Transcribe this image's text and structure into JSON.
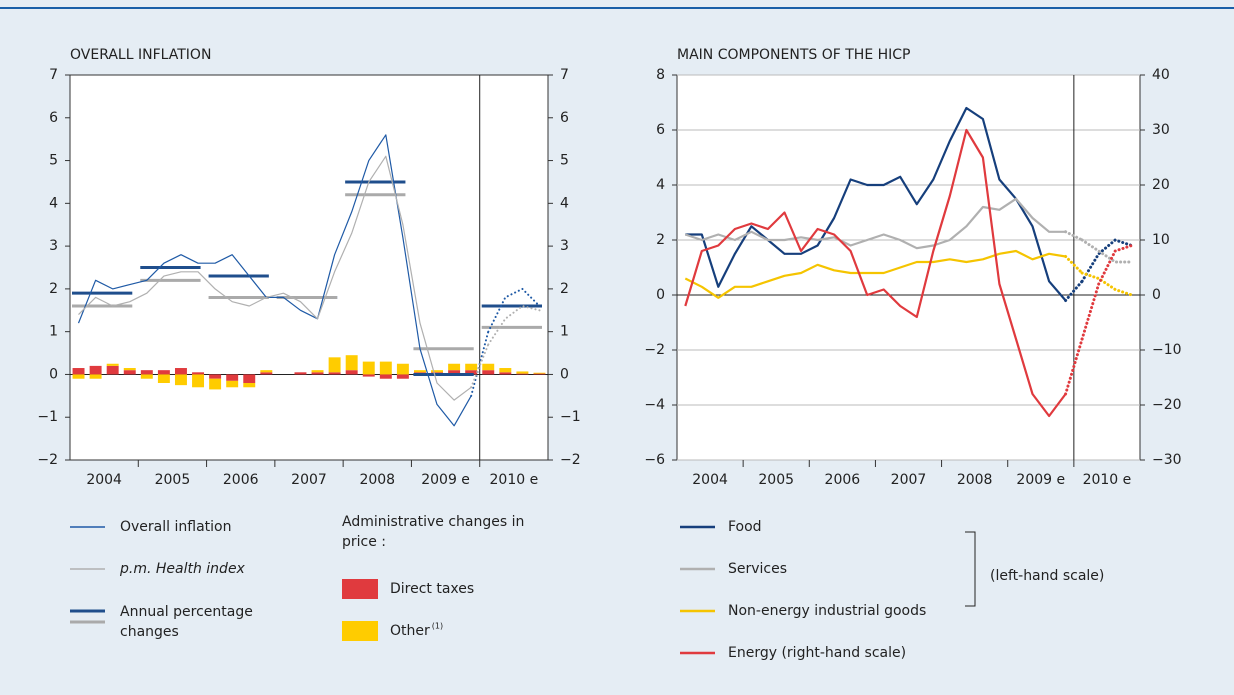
{
  "chart_data": [
    {
      "type": "line",
      "title": "OVERALL INFLATION",
      "x": [
        2004.125,
        2004.375,
        2004.625,
        2004.875,
        2005.125,
        2005.375,
        2005.625,
        2005.875,
        2006.125,
        2006.375,
        2006.625,
        2006.875,
        2007.125,
        2007.375,
        2007.625,
        2007.875,
        2008.125,
        2008.375,
        2008.625,
        2008.875,
        2009.125,
        2009.375,
        2009.625,
        2009.875,
        2010.125,
        2010.375,
        2010.625,
        2010.875
      ],
      "xlim": [
        2004,
        2011
      ],
      "xticks": [
        {
          "value": 2004.5,
          "label": "2004"
        },
        {
          "value": 2005.5,
          "label": "2005"
        },
        {
          "value": 2006.5,
          "label": "2006"
        },
        {
          "value": 2007.5,
          "label": "2007"
        },
        {
          "value": 2008.5,
          "label": "2008"
        },
        {
          "value": 2009.5,
          "label": "2009 e"
        },
        {
          "value": 2010.5,
          "label": "2010 e"
        }
      ],
      "ylim": [
        -2,
        7
      ],
      "yticks": [
        {
          "value": -2,
          "label": "−2"
        },
        {
          "value": -1,
          "label": "−1"
        },
        0,
        1,
        2,
        3,
        4,
        5,
        6,
        7
      ],
      "mirror_y_axis": true,
      "grid": false,
      "forecast_start": 2010,
      "series": [
        {
          "name": "Overall inflation",
          "color": "#1f5aa6",
          "values": [
            1.2,
            2.2,
            2.0,
            2.1,
            2.2,
            2.6,
            2.8,
            2.6,
            2.6,
            2.8,
            2.3,
            1.8,
            1.8,
            1.5,
            1.3,
            2.8,
            3.8,
            5.0,
            5.6,
            3.2,
            0.6,
            -0.7,
            -1.2,
            -0.5,
            1.0,
            1.8,
            2.0,
            1.6
          ]
        },
        {
          "name": "p.m. Health index",
          "color": "#b0b0b0",
          "values": [
            1.4,
            1.8,
            1.6,
            1.7,
            1.9,
            2.3,
            2.4,
            2.4,
            2.0,
            1.7,
            1.6,
            1.8,
            1.9,
            1.7,
            1.3,
            2.4,
            3.3,
            4.5,
            5.1,
            3.5,
            1.2,
            -0.2,
            -0.6,
            -0.3,
            0.7,
            1.3,
            1.6,
            1.5
          ]
        }
      ],
      "annual": {
        "name": "Annual percentage changes",
        "x": [
          2004,
          2005,
          2006,
          2007,
          2008,
          2009,
          2010
        ],
        "series": [
          {
            "color": "#1f4e8c",
            "values": [
              1.9,
              2.5,
              2.3,
              1.8,
              4.5,
              0.0,
              1.6
            ]
          },
          {
            "color": "#aaaaaa",
            "values": [
              1.6,
              2.2,
              1.8,
              1.8,
              4.2,
              0.6,
              1.1
            ]
          }
        ]
      },
      "bars": {
        "title": "Administrative changes in price :",
        "series": [
          {
            "name": "Direct taxes",
            "color": "#e03a3e",
            "values": [
              0.15,
              0.2,
              0.2,
              0.1,
              0.1,
              0.1,
              0.15,
              0.05,
              -0.1,
              -0.15,
              -0.2,
              0.05,
              0,
              0.05,
              0.05,
              0.05,
              0.1,
              -0.05,
              -0.1,
              -0.1,
              0.05,
              0.05,
              0.1,
              0.1,
              0.1,
              0.05,
              0.02,
              0.02
            ]
          },
          {
            "name": "Other",
            "note": "(1)",
            "color": "#ffcc00",
            "values": [
              -0.1,
              -0.1,
              0.05,
              0.05,
              -0.1,
              -0.2,
              -0.25,
              -0.3,
              -0.25,
              -0.15,
              -0.1,
              0.05,
              0,
              0,
              0.05,
              0.35,
              0.35,
              0.3,
              0.3,
              0.25,
              0.05,
              0.05,
              0.15,
              0.15,
              0.15,
              0.1,
              0.05,
              0.02
            ]
          }
        ]
      }
    },
    {
      "type": "line",
      "title": "MAIN COMPONENTS OF THE HICP",
      "x": [
        2004.125,
        2004.375,
        2004.625,
        2004.875,
        2005.125,
        2005.375,
        2005.625,
        2005.875,
        2006.125,
        2006.375,
        2006.625,
        2006.875,
        2007.125,
        2007.375,
        2007.625,
        2007.875,
        2008.125,
        2008.375,
        2008.625,
        2008.875,
        2009.125,
        2009.375,
        2009.625,
        2009.875,
        2010.125,
        2010.375,
        2010.625,
        2010.875
      ],
      "xlim": [
        2004,
        2011
      ],
      "xticks": [
        {
          "value": 2004.5,
          "label": "2004"
        },
        {
          "value": 2005.5,
          "label": "2005"
        },
        {
          "value": 2006.5,
          "label": "2006"
        },
        {
          "value": 2007.5,
          "label": "2007"
        },
        {
          "value": 2008.5,
          "label": "2008"
        },
        {
          "value": 2009.5,
          "label": "2009 e"
        },
        {
          "value": 2010.5,
          "label": "2010 e"
        }
      ],
      "ylim": [
        -6,
        8
      ],
      "yticks": [
        {
          "value": -6,
          "label": "−6"
        },
        {
          "value": -4,
          "label": "−4"
        },
        {
          "value": -2,
          "label": "−2"
        },
        0,
        2,
        4,
        6,
        8
      ],
      "y2lim": [
        -30,
        40
      ],
      "y2ticks": [
        {
          "value": -30,
          "label": "−30"
        },
        {
          "value": -20,
          "label": "−20"
        },
        {
          "value": -10,
          "label": "−10"
        },
        0,
        10,
        20,
        30,
        40
      ],
      "grid": true,
      "forecast_start": 2010,
      "series": [
        {
          "name": "Food",
          "color": "#163f7c",
          "values": [
            2.2,
            2.2,
            0.3,
            1.5,
            2.5,
            2.0,
            1.5,
            1.5,
            1.8,
            2.8,
            4.2,
            4.0,
            4.0,
            4.3,
            3.3,
            4.2,
            5.6,
            6.8,
            6.4,
            4.2,
            3.5,
            2.5,
            0.5,
            -0.2,
            0.5,
            1.5,
            2.0,
            1.8
          ]
        },
        {
          "name": "Services",
          "color": "#b0b0b0",
          "values": [
            2.2,
            2.0,
            2.2,
            2.0,
            2.3,
            2.0,
            2.0,
            2.1,
            2.0,
            2.1,
            1.8,
            2.0,
            2.2,
            2.0,
            1.7,
            1.8,
            2.0,
            2.5,
            3.2,
            3.1,
            3.5,
            2.8,
            2.3,
            2.3,
            2.0,
            1.6,
            1.2,
            1.2
          ]
        },
        {
          "name": "Non-energy industrial goods",
          "color": "#f5c400",
          "values": [
            0.6,
            0.3,
            -0.1,
            0.3,
            0.3,
            0.5,
            0.7,
            0.8,
            1.1,
            0.9,
            0.8,
            0.8,
            0.8,
            1.0,
            1.2,
            1.2,
            1.3,
            1.2,
            1.3,
            1.5,
            1.6,
            1.3,
            1.5,
            1.4,
            0.8,
            0.6,
            0.2,
            0.0
          ]
        },
        {
          "name": "Energy (right-hand scale)",
          "color": "#e03a3e",
          "axis": "y2",
          "values": [
            -2,
            8,
            9,
            12,
            13,
            12,
            15,
            8,
            12,
            11,
            8,
            0,
            1,
            -2,
            -4,
            8,
            18,
            30,
            25,
            2,
            -8,
            -18,
            -22,
            -18,
            -8,
            2,
            8,
            9
          ]
        }
      ],
      "bracket_label": "(left-hand scale)"
    }
  ]
}
